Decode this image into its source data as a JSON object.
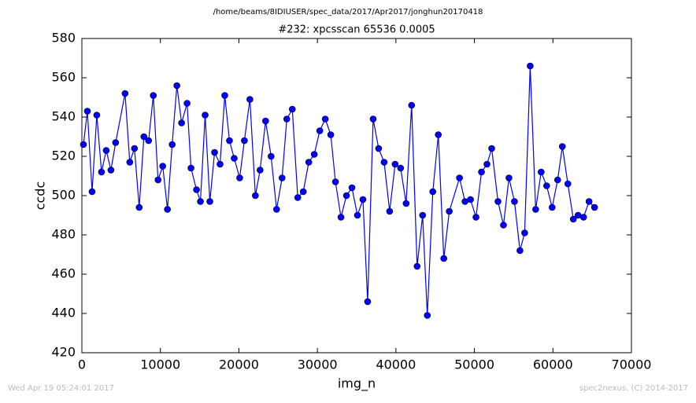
{
  "chart_data": {
    "type": "line",
    "suptitle": "/home/beams/8IDIUSER/spec_data/2017/Apr2017/jonghun20170418",
    "title": "#232: xpcsscan 65536 0.0005",
    "xlabel": "img_n",
    "ylabel": "ccdc",
    "footer_left": "Wed Apr 19 05:24:01 2017",
    "footer_right": "spec2nexus, (C) 2014-2017",
    "xlim": [
      0,
      70000
    ],
    "xticks": [
      0,
      10000,
      20000,
      30000,
      40000,
      50000,
      60000,
      70000
    ],
    "ylim": [
      420,
      580
    ],
    "yticks": [
      420,
      440,
      460,
      480,
      500,
      520,
      540,
      560,
      580
    ],
    "series": [
      {
        "color": "#0000ff",
        "x": [
          200,
          700,
          1300,
          1900,
          2500,
          3100,
          3700,
          4300,
          5500,
          6100,
          6700,
          7300,
          7900,
          8500,
          9100,
          9700,
          10300,
          10900,
          11500,
          12100,
          12700,
          13400,
          13900,
          14600,
          15100,
          15700,
          16300,
          16900,
          17600,
          18200,
          18800,
          19400,
          20100,
          20700,
          21400,
          22100,
          22700,
          23400,
          24100,
          24800,
          25500,
          26100,
          26800,
          27500,
          28200,
          28900,
          29600,
          30300,
          31000,
          31700,
          32300,
          33000,
          33700,
          34400,
          35100,
          35800,
          36400,
          37100,
          37800,
          38500,
          39200,
          39900,
          40600,
          41300,
          42000,
          42700,
          43400,
          44000,
          44700,
          45400,
          46100,
          46800,
          48100,
          48800,
          49500,
          50200,
          50900,
          51600,
          52200,
          53000,
          53700,
          54400,
          55100,
          55800,
          56400,
          57100,
          57800,
          58500,
          59200,
          59900,
          60600,
          61200,
          61900,
          62600,
          63200,
          63900,
          64600,
          65300
        ],
        "values": [
          526,
          543,
          502,
          541,
          512,
          523,
          513,
          527,
          552,
          517,
          524,
          494,
          530,
          528,
          551,
          508,
          515,
          493,
          526,
          556,
          537,
          547,
          514,
          503,
          497,
          541,
          497,
          522,
          516,
          551,
          528,
          519,
          509,
          528,
          549,
          500,
          513,
          538,
          520,
          493,
          509,
          539,
          544,
          499,
          502,
          517,
          521,
          533,
          539,
          531,
          507,
          489,
          500,
          504,
          490,
          498,
          446,
          539,
          524,
          517,
          492,
          516,
          514,
          496,
          546,
          464,
          490,
          439,
          502,
          531,
          468,
          492,
          509,
          497,
          498,
          489,
          512,
          516,
          524,
          497,
          485,
          509,
          497,
          472,
          481,
          566,
          493,
          512,
          505,
          494,
          508,
          525,
          506,
          488,
          490,
          489,
          497,
          494
        ]
      }
    ]
  }
}
